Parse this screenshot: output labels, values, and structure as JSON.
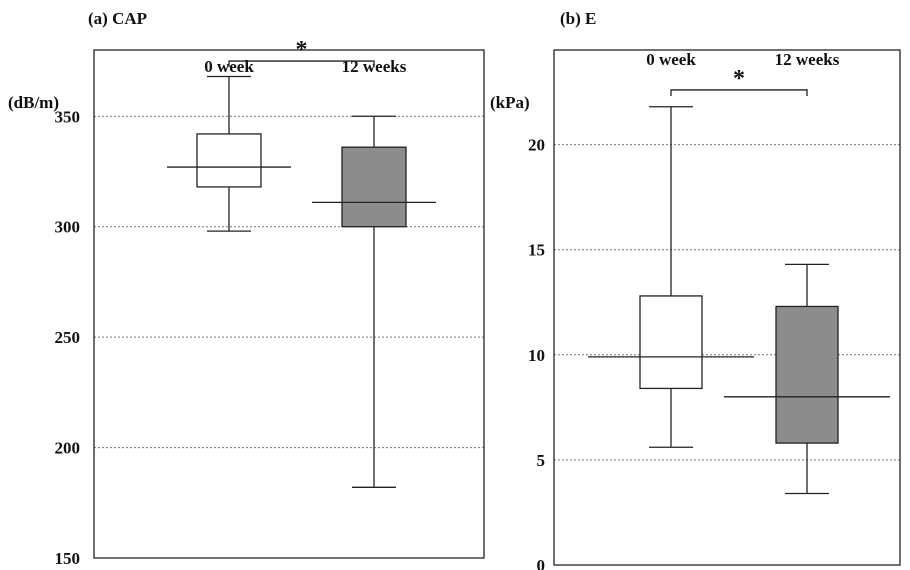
{
  "chart_data": [
    {
      "type": "box",
      "title": "(a)  CAP",
      "ylabel": "(dB/m)",
      "ylim": [
        150,
        380
      ],
      "yticks": [
        150,
        200,
        250,
        300,
        350
      ],
      "grid": "horizontal-dotted",
      "groups": [
        {
          "label": "0 week",
          "min": 298,
          "q1": 318,
          "median": 327,
          "q3": 342,
          "max": 368,
          "color": "#ffffff"
        },
        {
          "label": "12 weeks",
          "min": 182,
          "q1": 300,
          "median": 311,
          "q3": 336,
          "max": 350,
          "color": "#8c8c8c"
        }
      ],
      "significance": {
        "label": "*",
        "between": [
          0,
          1
        ],
        "y": 375
      }
    },
    {
      "type": "box",
      "title": "(b)  E",
      "ylabel": "(kPa)",
      "ylim": [
        0,
        24.5
      ],
      "yticks": [
        0,
        5,
        10,
        15,
        20
      ],
      "grid": "horizontal-dotted",
      "groups": [
        {
          "label": "0 week",
          "min": 5.6,
          "q1": 8.4,
          "median": 9.9,
          "q3": 12.8,
          "max": 21.8,
          "color": "#ffffff"
        },
        {
          "label": "12 weeks",
          "min": 3.4,
          "q1": 5.8,
          "median": 8.0,
          "q3": 12.3,
          "max": 14.3,
          "color": "#8c8c8c"
        }
      ],
      "significance": {
        "label": "*",
        "between": [
          0,
          1
        ],
        "y": 22.6
      }
    }
  ]
}
